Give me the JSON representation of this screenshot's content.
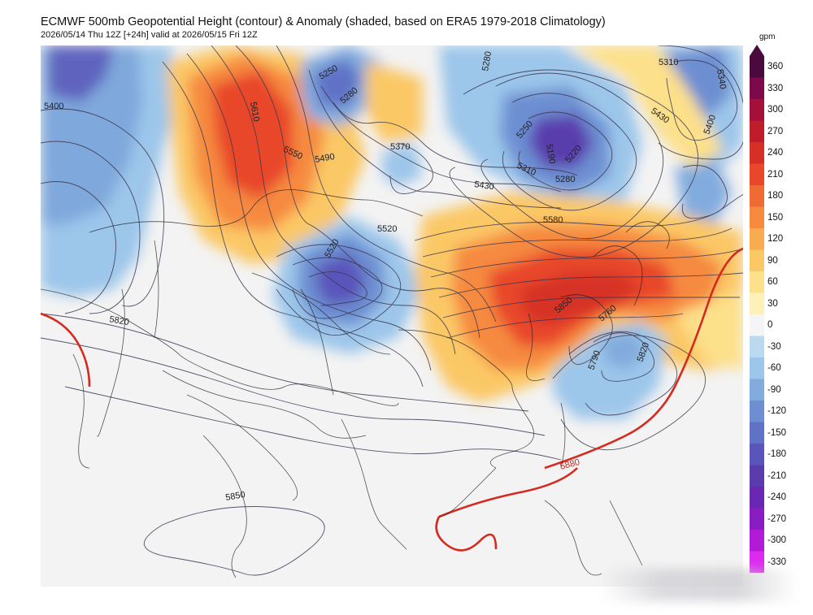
{
  "header": {
    "title": "ECMWF 500mb Geopotential Height (contour) & Anomaly (shaded, based on ERA5 1979-2018 Climatology)",
    "subtitle": "2026/05/14 Thu 12Z [+24h] valid at 2026/05/15 Fri 12Z"
  },
  "colorbar": {
    "unit": "gpm",
    "labels": [
      "360",
      "330",
      "300",
      "270",
      "240",
      "210",
      "180",
      "150",
      "120",
      "90",
      "60",
      "30",
      "0",
      "-30",
      "-60",
      "-90",
      "-120",
      "-150",
      "-180",
      "-210",
      "-240",
      "-270",
      "-300",
      "-330"
    ],
    "colors": [
      "#4a0a3e",
      "#7c0a4a",
      "#a50f3c",
      "#c01d2a",
      "#d63026",
      "#e8472a",
      "#f06a33",
      "#f68a3f",
      "#f9ab4f",
      "#fbc866",
      "#fde08a",
      "#fdf0b8",
      "#f5f5f5",
      "#bcdaef",
      "#9cc6ea",
      "#82acde",
      "#6d8fd2",
      "#5f72c6",
      "#5a55ba",
      "#5a3cad",
      "#6a28b2",
      "#8a1cc4",
      "#b11ad6",
      "#dc2af0"
    ]
  },
  "contour_labels": [
    {
      "text": "5400",
      "color": "#222"
    },
    {
      "text": "5610",
      "color": "#222"
    },
    {
      "text": "5250",
      "color": "#222"
    },
    {
      "text": "5280",
      "color": "#222"
    },
    {
      "text": "5550",
      "color": "#222"
    },
    {
      "text": "5490",
      "color": "#222"
    },
    {
      "text": "5370",
      "color": "#222"
    },
    {
      "text": "5250",
      "color": "#222"
    },
    {
      "text": "5190",
      "color": "#222"
    },
    {
      "text": "5220",
      "color": "#222"
    },
    {
      "text": "5310",
      "color": "#222"
    },
    {
      "text": "5280",
      "color": "#222"
    },
    {
      "text": "5430",
      "color": "#222"
    },
    {
      "text": "5580",
      "color": "#222"
    },
    {
      "text": "5520",
      "color": "#222"
    },
    {
      "text": "5520",
      "color": "#222"
    },
    {
      "text": "5820",
      "color": "#222"
    },
    {
      "text": "5850",
      "color": "#222"
    },
    {
      "text": "5880",
      "color": "#c8281e"
    },
    {
      "text": "5760",
      "color": "#222"
    },
    {
      "text": "5790",
      "color": "#222"
    },
    {
      "text": "5820",
      "color": "#222"
    },
    {
      "text": "5850",
      "color": "#222"
    },
    {
      "text": "5310",
      "color": "#222"
    },
    {
      "text": "5340",
      "color": "#222"
    },
    {
      "text": "5400",
      "color": "#222"
    },
    {
      "text": "5430",
      "color": "#222"
    },
    {
      "text": "5280",
      "color": "#222"
    }
  ]
}
